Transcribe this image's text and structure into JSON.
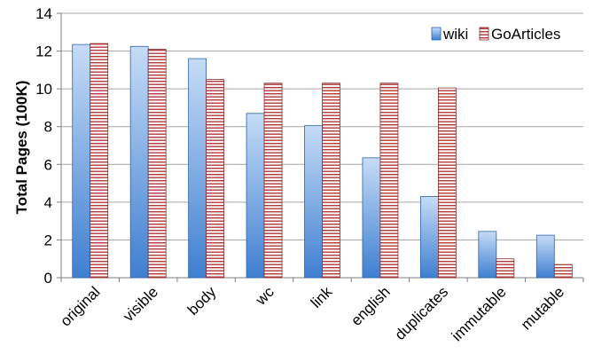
{
  "chart_data": {
    "type": "bar",
    "title": "",
    "xlabel": "",
    "ylabel": "Total Pages (100K)",
    "ylim": [
      0,
      14
    ],
    "yticks": [
      0,
      2,
      4,
      6,
      8,
      10,
      12,
      14
    ],
    "grid": "horizontal",
    "legend_position": "top-right",
    "categories": [
      "original",
      "visible",
      "body",
      "wc",
      "link",
      "english",
      "duplicates",
      "immutable",
      "mutable"
    ],
    "series": [
      {
        "name": "wiki",
        "color": "#5b8fd6",
        "style": "gradient-blue",
        "values": [
          12.35,
          12.25,
          11.6,
          8.7,
          8.05,
          6.35,
          4.3,
          2.45,
          2.25
        ]
      },
      {
        "name": "GoArticles",
        "color": "#b23a3a",
        "style": "horizontal-stripes-red",
        "values": [
          12.4,
          12.1,
          10.5,
          10.3,
          10.3,
          10.3,
          10.05,
          1.0,
          0.7
        ]
      }
    ]
  }
}
